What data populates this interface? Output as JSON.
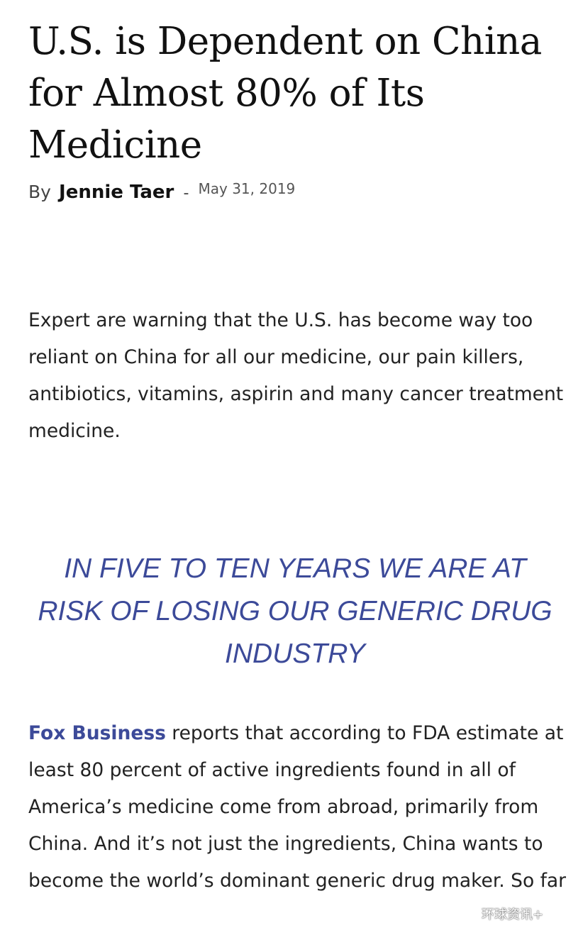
{
  "article": {
    "title": "U.S. is Dependent on China for Almost 80% of Its Medicine",
    "byline": {
      "by": "By",
      "author": "Jennie Taer",
      "separator": "-",
      "date": "May 31, 2019"
    },
    "paragraph1": "Expert are warning that the U.S. has become way too reliant on China for all our medicine, our pain killers, antibiotics, vitamins, aspirin and many cancer treatment medicine.",
    "pull_quote": "IN FIVE TO TEN YEARS WE ARE AT RISK OF LOSING OUR GENERIC DRUG INDUSTRY",
    "paragraph2": {
      "link": "Fox Business",
      "text": " reports that according to FDA estimate at least 80 percent of active ingredients found in all of America’s medicine come from abroad, primarily from China. And it’s not just the ingredients, China wants to become the world’s dominant generic drug maker. So far"
    },
    "link_color": "#3c4a99"
  },
  "watermark": {
    "icon": "wechat-icon",
    "text": "环球资讯+"
  }
}
